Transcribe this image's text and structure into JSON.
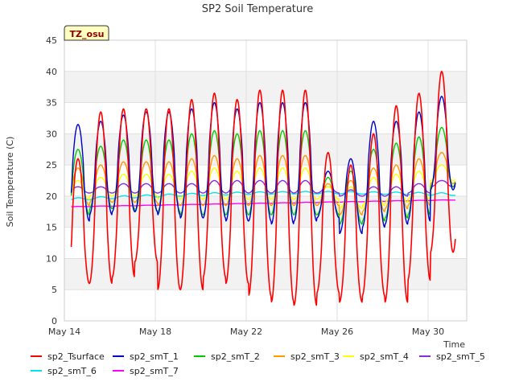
{
  "chart_data": {
    "type": "line",
    "title": "SP2 Soil Temperature",
    "ylabel": "Soil Temperature (C)",
    "xlabel": "Time",
    "badge": "TZ_osu",
    "ylim": [
      0,
      45
    ],
    "yticks": [
      0,
      5,
      10,
      15,
      20,
      25,
      30,
      35,
      40,
      45
    ],
    "xlim": [
      14,
      31.7
    ],
    "xticks": [
      {
        "value": 14,
        "label": "May 14"
      },
      {
        "value": 18,
        "label": "May 18"
      },
      {
        "value": 22,
        "label": "May 22"
      },
      {
        "value": 26,
        "label": "May 26"
      },
      {
        "value": 30,
        "label": "May 30"
      }
    ],
    "x_range": [
      14.3,
      31.2
    ],
    "daily_peak_day": [
      14.6,
      15.6,
      16.6,
      17.6,
      18.6,
      19.6,
      20.6,
      21.6,
      22.6,
      23.6,
      24.6,
      25.6,
      26.6,
      27.6,
      28.6,
      29.6,
      30.6
    ],
    "series": [
      {
        "name": "sp2_Tsurface",
        "color": "#ff0000",
        "daily_min": [
          6,
          6,
          7,
          9.5,
          5,
          5,
          7,
          6,
          4,
          3,
          2.5,
          4.5,
          3,
          4,
          3,
          6.5,
          11
        ],
        "daily_max": [
          26,
          33.5,
          34,
          34,
          34,
          35.5,
          36.5,
          35.5,
          37,
          37,
          37,
          27,
          25,
          30,
          34.5,
          36.5,
          40
        ]
      },
      {
        "name": "sp2_smT_1",
        "color": "#0000cc",
        "daily_min": [
          16,
          17,
          17.5,
          17.5,
          17,
          16.5,
          16.5,
          16,
          16,
          15.5,
          16,
          16.5,
          14,
          15,
          15.5,
          16,
          21
        ],
        "daily_max": [
          31.5,
          32,
          33,
          33.5,
          33.5,
          34,
          35,
          34,
          35,
          35,
          35,
          24,
          26,
          32,
          32,
          33.5,
          36
        ]
      },
      {
        "name": "sp2_smT_2",
        "color": "#00cc00",
        "daily_min": [
          17,
          18,
          18,
          17.5,
          17.5,
          17,
          17,
          17,
          17,
          17,
          17,
          17,
          15.5,
          16,
          16.5,
          17,
          21.5
        ],
        "daily_max": [
          27.5,
          28,
          29,
          29,
          29,
          30,
          30.5,
          30,
          30.5,
          30.5,
          30.5,
          23,
          24,
          27.5,
          28.5,
          29.5,
          31
        ]
      },
      {
        "name": "sp2_smT_3",
        "color": "#ff9900",
        "daily_min": [
          18.5,
          19,
          19,
          19,
          18.5,
          18.5,
          18.5,
          18.5,
          18.5,
          18.5,
          18.5,
          18.5,
          17,
          17.5,
          18,
          18.5,
          22
        ],
        "daily_max": [
          24.5,
          25,
          25.5,
          25.5,
          25.5,
          26,
          26.5,
          26,
          26.5,
          26.5,
          26.5,
          22,
          22.5,
          24.5,
          25,
          26,
          27
        ]
      },
      {
        "name": "sp2_smT_4",
        "color": "#ffff00",
        "daily_min": [
          19.5,
          20,
          20,
          20,
          19.5,
          19.5,
          19.5,
          19.5,
          19.5,
          19.5,
          19.5,
          19.5,
          18,
          18.5,
          19,
          19.5,
          22.5
        ],
        "daily_max": [
          22.5,
          23,
          23.5,
          23.5,
          23.5,
          24,
          24.5,
          24,
          24.5,
          24.5,
          24.5,
          21.5,
          21.5,
          23,
          23.5,
          24,
          25
        ]
      },
      {
        "name": "sp2_smT_5",
        "color": "#8a2be2",
        "daily_min": [
          20.5,
          20.5,
          20.5,
          20.5,
          20.5,
          20.5,
          20.5,
          20.5,
          20.5,
          20.5,
          20.5,
          20.5,
          20,
          20,
          20,
          20.5,
          21.5
        ],
        "daily_max": [
          21.5,
          21.5,
          22,
          22,
          22,
          22,
          22.5,
          22.5,
          22.5,
          22.5,
          22.5,
          21.5,
          21,
          21.5,
          21.5,
          22,
          22.5
        ]
      },
      {
        "name": "sp2_smT_6",
        "color": "#00e5ee",
        "start": 19.5,
        "end": 20.3,
        "mid": 20.5,
        "amplitude": 0.2
      },
      {
        "name": "sp2_smT_7",
        "color": "#ff00ff",
        "start": 18.3,
        "end": 19.4,
        "amplitude": 0.03
      }
    ]
  }
}
